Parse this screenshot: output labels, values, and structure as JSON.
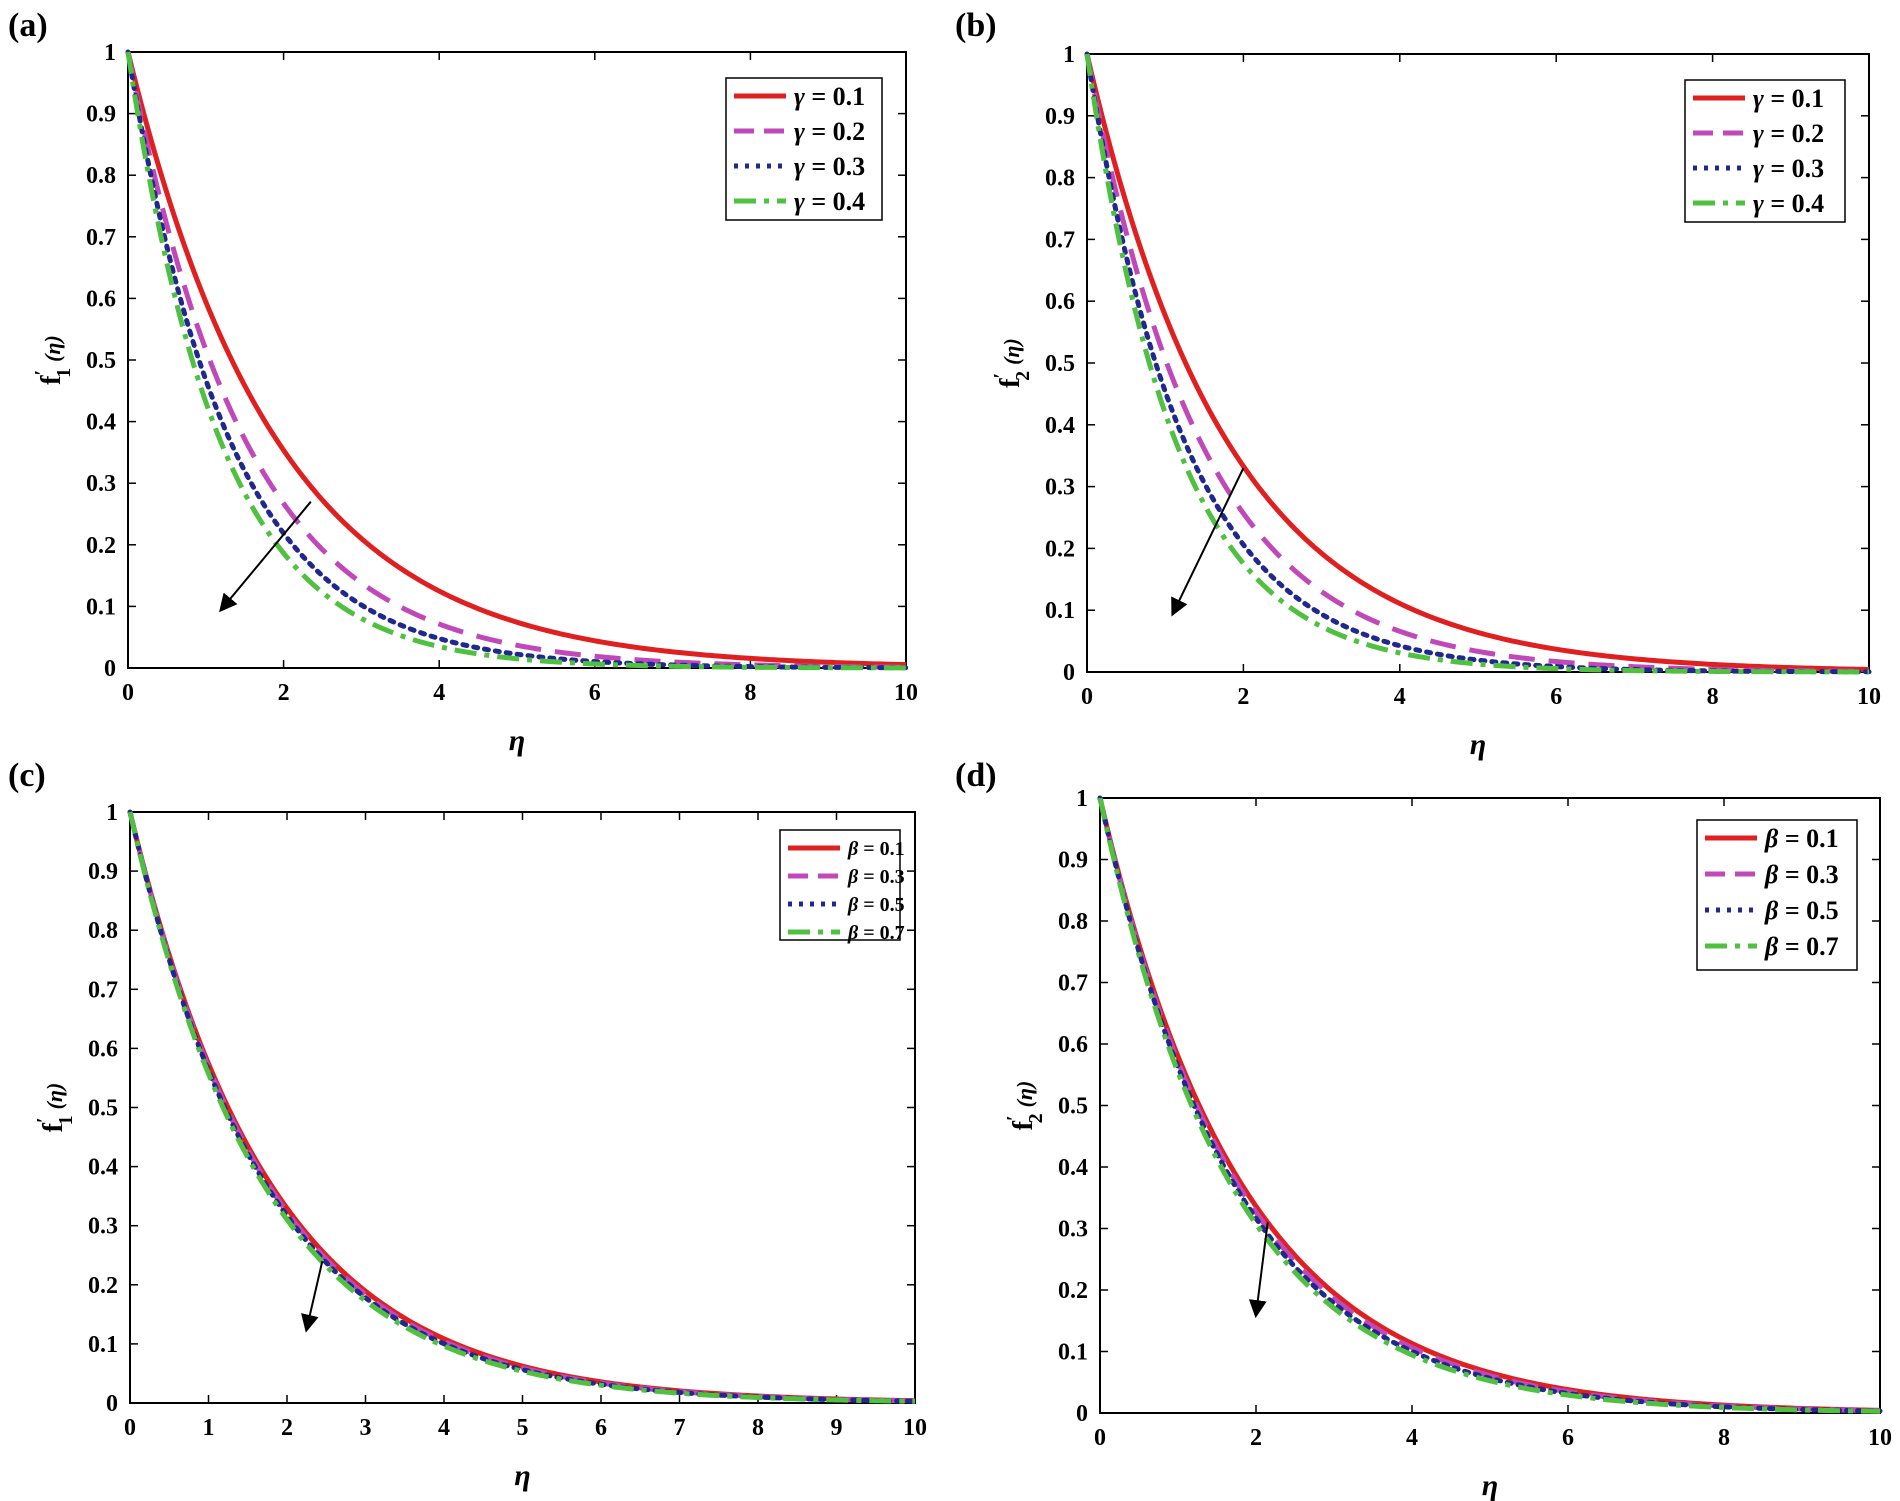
{
  "chart_data": [
    {
      "id": "a",
      "type": "line",
      "panel_label": "(a)",
      "xlabel": "η",
      "ylabel": {
        "main": "f",
        "prime": "′",
        "sub": "1",
        "arg": "(η)"
      },
      "xlim": [
        0,
        10
      ],
      "ylim": [
        0,
        1
      ],
      "xticks": [
        0,
        2,
        4,
        6,
        8,
        10
      ],
      "yticks": [
        0,
        0.1,
        0.2,
        0.3,
        0.4,
        0.5,
        0.6,
        0.7,
        0.8,
        0.9,
        1
      ],
      "ytick_labels": [
        "0",
        "0.1",
        "0.2",
        "0.3",
        "0.4",
        "0.5",
        "0.6",
        "0.7",
        "0.8",
        "0.9",
        "1"
      ],
      "legend_position": "top-right",
      "curve_model": "exp(-k*eta)",
      "series": [
        {
          "name": "γ = 0.1",
          "symbol": "γ",
          "value_text": "= 0.1",
          "k": 0.52,
          "color": "#e02020",
          "style": "solid"
        },
        {
          "name": "γ = 0.2",
          "symbol": "γ",
          "value_text": "= 0.2",
          "k": 0.66,
          "color": "#c048b8",
          "style": "dash"
        },
        {
          "name": "γ = 0.3",
          "symbol": "γ",
          "value_text": "= 0.3",
          "k": 0.76,
          "color": "#202890",
          "style": "dot"
        },
        {
          "name": "γ = 0.4",
          "symbol": "γ",
          "value_text": "= 0.4",
          "k": 0.84,
          "color": "#50c040",
          "style": "dashdot"
        }
      ],
      "arrow": {
        "from": [
          2.35,
          0.27
        ],
        "to": [
          1.2,
          0.095
        ]
      }
    },
    {
      "id": "b",
      "type": "line",
      "panel_label": "(b)",
      "xlabel": "η",
      "ylabel": {
        "main": "f",
        "prime": "′",
        "sub": "2",
        "arg": "(η)"
      },
      "xlim": [
        0,
        10
      ],
      "ylim": [
        0,
        1
      ],
      "xticks": [
        0,
        2,
        4,
        6,
        8,
        10
      ],
      "yticks": [
        0,
        0.1,
        0.2,
        0.3,
        0.4,
        0.5,
        0.6,
        0.7,
        0.8,
        0.9,
        1
      ],
      "ytick_labels": [
        "0",
        "0.1",
        "0.2",
        "0.3",
        "0.4",
        "0.5",
        "0.6",
        "0.7",
        "0.8",
        "0.9",
        "1"
      ],
      "legend_position": "top-right",
      "curve_model": "exp(-k*eta)",
      "series": [
        {
          "name": "γ = 0.1",
          "symbol": "γ",
          "value_text": "= 0.1",
          "k": 0.55,
          "color": "#e02020",
          "style": "solid"
        },
        {
          "name": "γ = 0.2",
          "symbol": "γ",
          "value_text": "= 0.2",
          "k": 0.68,
          "color": "#c048b8",
          "style": "dash"
        },
        {
          "name": "γ = 0.3",
          "symbol": "γ",
          "value_text": "= 0.3",
          "k": 0.79,
          "color": "#202890",
          "style": "dot"
        },
        {
          "name": "γ = 0.4",
          "symbol": "γ",
          "value_text": "= 0.4",
          "k": 0.87,
          "color": "#50c040",
          "style": "dashdot"
        }
      ],
      "arrow": {
        "from": [
          2.0,
          0.33
        ],
        "to": [
          1.1,
          0.095
        ]
      }
    },
    {
      "id": "c",
      "type": "line",
      "panel_label": "(c)",
      "xlabel": "η",
      "ylabel": {
        "main": "f",
        "prime": "′",
        "sub": "1",
        "arg": "(η)"
      },
      "xlim": [
        0,
        10
      ],
      "ylim": [
        0,
        1
      ],
      "xticks": [
        0,
        1,
        2,
        3,
        4,
        5,
        6,
        7,
        8,
        9,
        10
      ],
      "yticks": [
        0,
        0.1,
        0.2,
        0.3,
        0.4,
        0.5,
        0.6,
        0.7,
        0.8,
        0.9,
        1
      ],
      "ytick_labels": [
        "0",
        "0.1",
        "0.2",
        "0.3",
        "0.4",
        "0.5",
        "0.6",
        "0.7",
        "0.8",
        "0.9",
        "1"
      ],
      "legend_position": "top-right",
      "curve_model": "exp(-k*eta)",
      "series": [
        {
          "name": "β = 0.1",
          "symbol": "β",
          "value_text": "= 0.1",
          "k": 0.555,
          "color": "#e02020",
          "style": "solid"
        },
        {
          "name": "β = 0.3",
          "symbol": "β",
          "value_text": "= 0.3",
          "k": 0.565,
          "color": "#c048b8",
          "style": "dash"
        },
        {
          "name": "β = 0.5",
          "symbol": "β",
          "value_text": "= 0.5",
          "k": 0.575,
          "color": "#202890",
          "style": "dot"
        },
        {
          "name": "β = 0.7",
          "symbol": "β",
          "value_text": "= 0.7",
          "k": 0.585,
          "color": "#50c040",
          "style": "dashdot"
        }
      ],
      "arrow": {
        "from": [
          2.45,
          0.24
        ],
        "to": [
          2.25,
          0.125
        ]
      }
    },
    {
      "id": "d",
      "type": "line",
      "panel_label": "(d)",
      "xlabel": "η",
      "ylabel": {
        "main": "f",
        "prime": "′",
        "sub": "2",
        "arg": "(η)"
      },
      "xlim": [
        0,
        10
      ],
      "ylim": [
        0,
        1
      ],
      "xticks": [
        0,
        2,
        4,
        6,
        8,
        10
      ],
      "yticks": [
        0,
        0.1,
        0.2,
        0.3,
        0.4,
        0.5,
        0.6,
        0.7,
        0.8,
        0.9,
        1
      ],
      "ytick_labels": [
        "0",
        "0.1",
        "0.2",
        "0.3",
        "0.4",
        "0.5",
        "0.6",
        "0.7",
        "0.8",
        "0.9",
        "1"
      ],
      "legend_position": "top-right",
      "curve_model": "exp(-k*eta)",
      "series": [
        {
          "name": "β = 0.1",
          "symbol": "β",
          "value_text": "= 0.1",
          "k": 0.545,
          "color": "#e02020",
          "style": "solid"
        },
        {
          "name": "β = 0.3",
          "symbol": "β",
          "value_text": "= 0.3",
          "k": 0.56,
          "color": "#c048b8",
          "style": "dash"
        },
        {
          "name": "β = 0.5",
          "symbol": "β",
          "value_text": "= 0.5",
          "k": 0.575,
          "color": "#202890",
          "style": "dot"
        },
        {
          "name": "β = 0.7",
          "symbol": "β",
          "value_text": "= 0.7",
          "k": 0.59,
          "color": "#50c040",
          "style": "dashdot"
        }
      ],
      "arrow": {
        "from": [
          2.15,
          0.31
        ],
        "to": [
          2.0,
          0.16
        ]
      }
    }
  ]
}
